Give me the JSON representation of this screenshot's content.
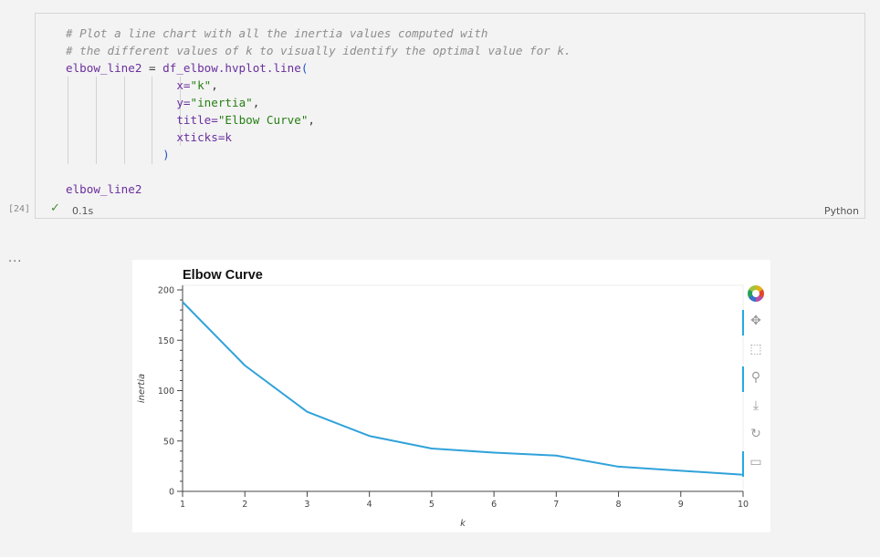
{
  "cell": {
    "execution_count": "[24]",
    "status_time": "0.1s",
    "language": "Python",
    "code_lines": {
      "comment1": "# Plot a line chart with all the inertia values computed with",
      "comment2": "# the different values of k to visually identify the optimal value for k.",
      "assign_var": "elbow_line2",
      "assign_op": " = ",
      "assign_call": "df_elbow.hvplot.line",
      "open_paren": "(",
      "x_key": "x=",
      "x_val": "\"k\"",
      "y_key": "y=",
      "y_val": "\"inertia\"",
      "title_key": "title=",
      "title_val": "\"Elbow Curve\"",
      "xticks_line": "xticks=k",
      "close_paren": ")",
      "comma": ",",
      "last_line": "elbow_line2"
    }
  },
  "output": {
    "prompt": "..."
  },
  "chart_data": {
    "type": "line",
    "title": "Elbow Curve",
    "xlabel": "k",
    "ylabel": "inertia",
    "x": [
      1,
      2,
      3,
      4,
      5,
      6,
      7,
      8,
      9,
      10
    ],
    "series": [
      {
        "values": [
          188,
          125,
          79,
          55,
          42.5,
          38.5,
          35.5,
          24.5,
          20.5,
          16.5
        ],
        "color": "#30a2da"
      }
    ],
    "xticks": [
      "1",
      "2",
      "3",
      "4",
      "5",
      "6",
      "7",
      "8",
      "9",
      "10"
    ],
    "yticks": [
      "0",
      "50",
      "100",
      "150",
      "200"
    ],
    "ylim": [
      0,
      200
    ],
    "xlim": [
      1,
      10
    ],
    "grid": false
  },
  "toolbar": {
    "tools": [
      "pan-icon",
      "box-zoom-icon",
      "wheel-zoom-icon",
      "save-icon",
      "reset-icon",
      "hover-icon"
    ]
  }
}
